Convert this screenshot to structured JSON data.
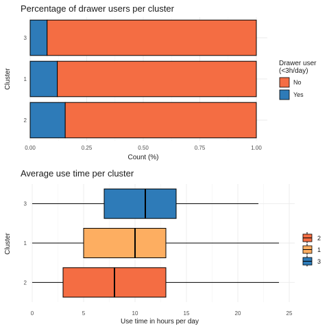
{
  "chart_data": [
    {
      "type": "bar",
      "orientation": "horizontal",
      "stacked": true,
      "title": "Percentage of drawer users per cluster",
      "xlabel": "Count (%)",
      "ylabel": "Cluster",
      "xlim": [
        0,
        1
      ],
      "x_ticks": [
        "0.00",
        "0.25",
        "0.50",
        "0.75",
        "1.00"
      ],
      "categories": [
        "3",
        "1",
        "2"
      ],
      "series": [
        {
          "name": "Yes",
          "values": [
            0.075,
            0.12,
            0.155
          ],
          "color": "#2E7BB8"
        },
        {
          "name": "No",
          "values": [
            0.925,
            0.88,
            0.845
          ],
          "color": "#F46D43"
        }
      ],
      "legend": {
        "title_line1": "Drawer user",
        "title_line2": "(<3h/day)",
        "entries": [
          "No",
          "Yes"
        ],
        "placement": "right"
      },
      "grid": true
    },
    {
      "type": "boxplot",
      "orientation": "horizontal",
      "title": "Average use time per cluster",
      "xlabel": "Use time in hours per day",
      "ylabel": "Cluster",
      "xlim": [
        0,
        25
      ],
      "x_ticks": [
        "0",
        "5",
        "10",
        "15",
        "20",
        "25"
      ],
      "categories": [
        "3",
        "1",
        "2"
      ],
      "boxes": [
        {
          "category": "3",
          "min": 0,
          "q1": 7,
          "median": 11,
          "q3": 14,
          "max": 22,
          "color": "#2E7BB8"
        },
        {
          "category": "1",
          "min": 0,
          "q1": 5,
          "median": 10,
          "q3": 13,
          "max": 24,
          "color": "#FDAE61"
        },
        {
          "category": "2",
          "min": 0,
          "q1": 3,
          "median": 8,
          "q3": 13,
          "max": 24,
          "color": "#F46D43"
        }
      ],
      "legend": {
        "entries": [
          "2",
          "1",
          "3"
        ],
        "placement": "right"
      },
      "grid": true
    }
  ]
}
